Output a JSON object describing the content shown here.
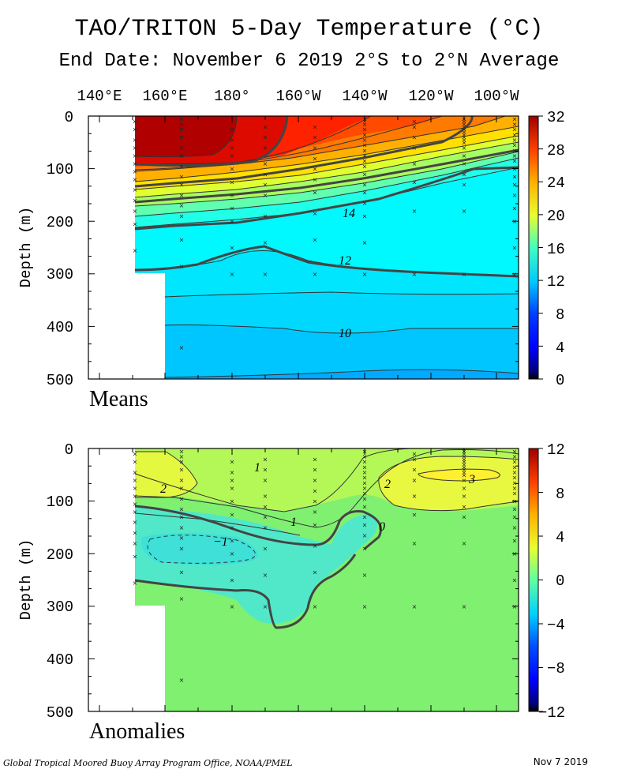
{
  "title": "TAO/TRITON 5-Day Temperature (°C)",
  "subtitle": "End Date: November 6 2019  2°S to 2°N Average",
  "footer_left": "Global Tropical Moored Buoy Array Program Office, NOAA/PMEL",
  "footer_right": "Nov  7 2019",
  "chart_data": [
    {
      "type": "heatmap",
      "panel_label": "Means",
      "ylabel": "Depth (m)",
      "x_tick_labels": [
        "140°E",
        "160°E",
        "180°",
        "160°W",
        "140°W",
        "120°W",
        "100°W"
      ],
      "y_tick_labels": [
        "0",
        "100",
        "200",
        "300",
        "400",
        "500"
      ],
      "ylim": [
        500,
        0
      ],
      "colorbar_ticks": [
        "32",
        "28",
        "24",
        "20",
        "16",
        "12",
        "8",
        "4",
        "0"
      ],
      "colorbar_range": [
        0,
        32
      ],
      "contour_labels": [
        "14",
        "12",
        "10"
      ],
      "x_lon_degE": [
        137,
        147,
        156,
        165,
        180,
        190,
        205,
        220,
        235,
        250,
        265
      ],
      "isotherm_depths_m": {
        "28": [
          95,
          97,
          98,
          100,
          100,
          85,
          60,
          40,
          25,
          10,
          0
        ],
        "20": [
          158,
          152,
          148,
          142,
          135,
          122,
          108,
          95,
          80,
          63,
          50
        ],
        "14": [
          215,
          205,
          200,
          195,
          190,
          185,
          175,
          165,
          150,
          125,
          100
        ],
        "12": [
          292,
          285,
          278,
          262,
          248,
          258,
          275,
          290,
          298,
          303,
          306
        ],
        "10": [
          420,
          418,
          416,
          414,
          413,
          410,
          408,
          410,
          412,
          414,
          415
        ]
      }
    },
    {
      "type": "heatmap",
      "panel_label": "Anomalies",
      "ylabel": "Depth (m)",
      "y_tick_labels": [
        "0",
        "100",
        "200",
        "300",
        "400",
        "500"
      ],
      "ylim": [
        500,
        0
      ],
      "colorbar_ticks": [
        "12",
        "8",
        "4",
        "0",
        "−4",
        "−8",
        "−12"
      ],
      "colorbar_range": [
        -12,
        12
      ],
      "contour_labels": [
        "1",
        "2",
        "1",
        "−1",
        "0",
        "2",
        "3"
      ],
      "background_anomaly_c": 0.5,
      "features": [
        {
          "anomaly_c": 2,
          "region": "160°E–180°, 30–90 m"
        },
        {
          "anomaly_c": 3,
          "region": "120°W–100°W, 30–70 m"
        },
        {
          "anomaly_c": -1,
          "region": "160°E–180°, 160–215 m"
        }
      ]
    }
  ]
}
